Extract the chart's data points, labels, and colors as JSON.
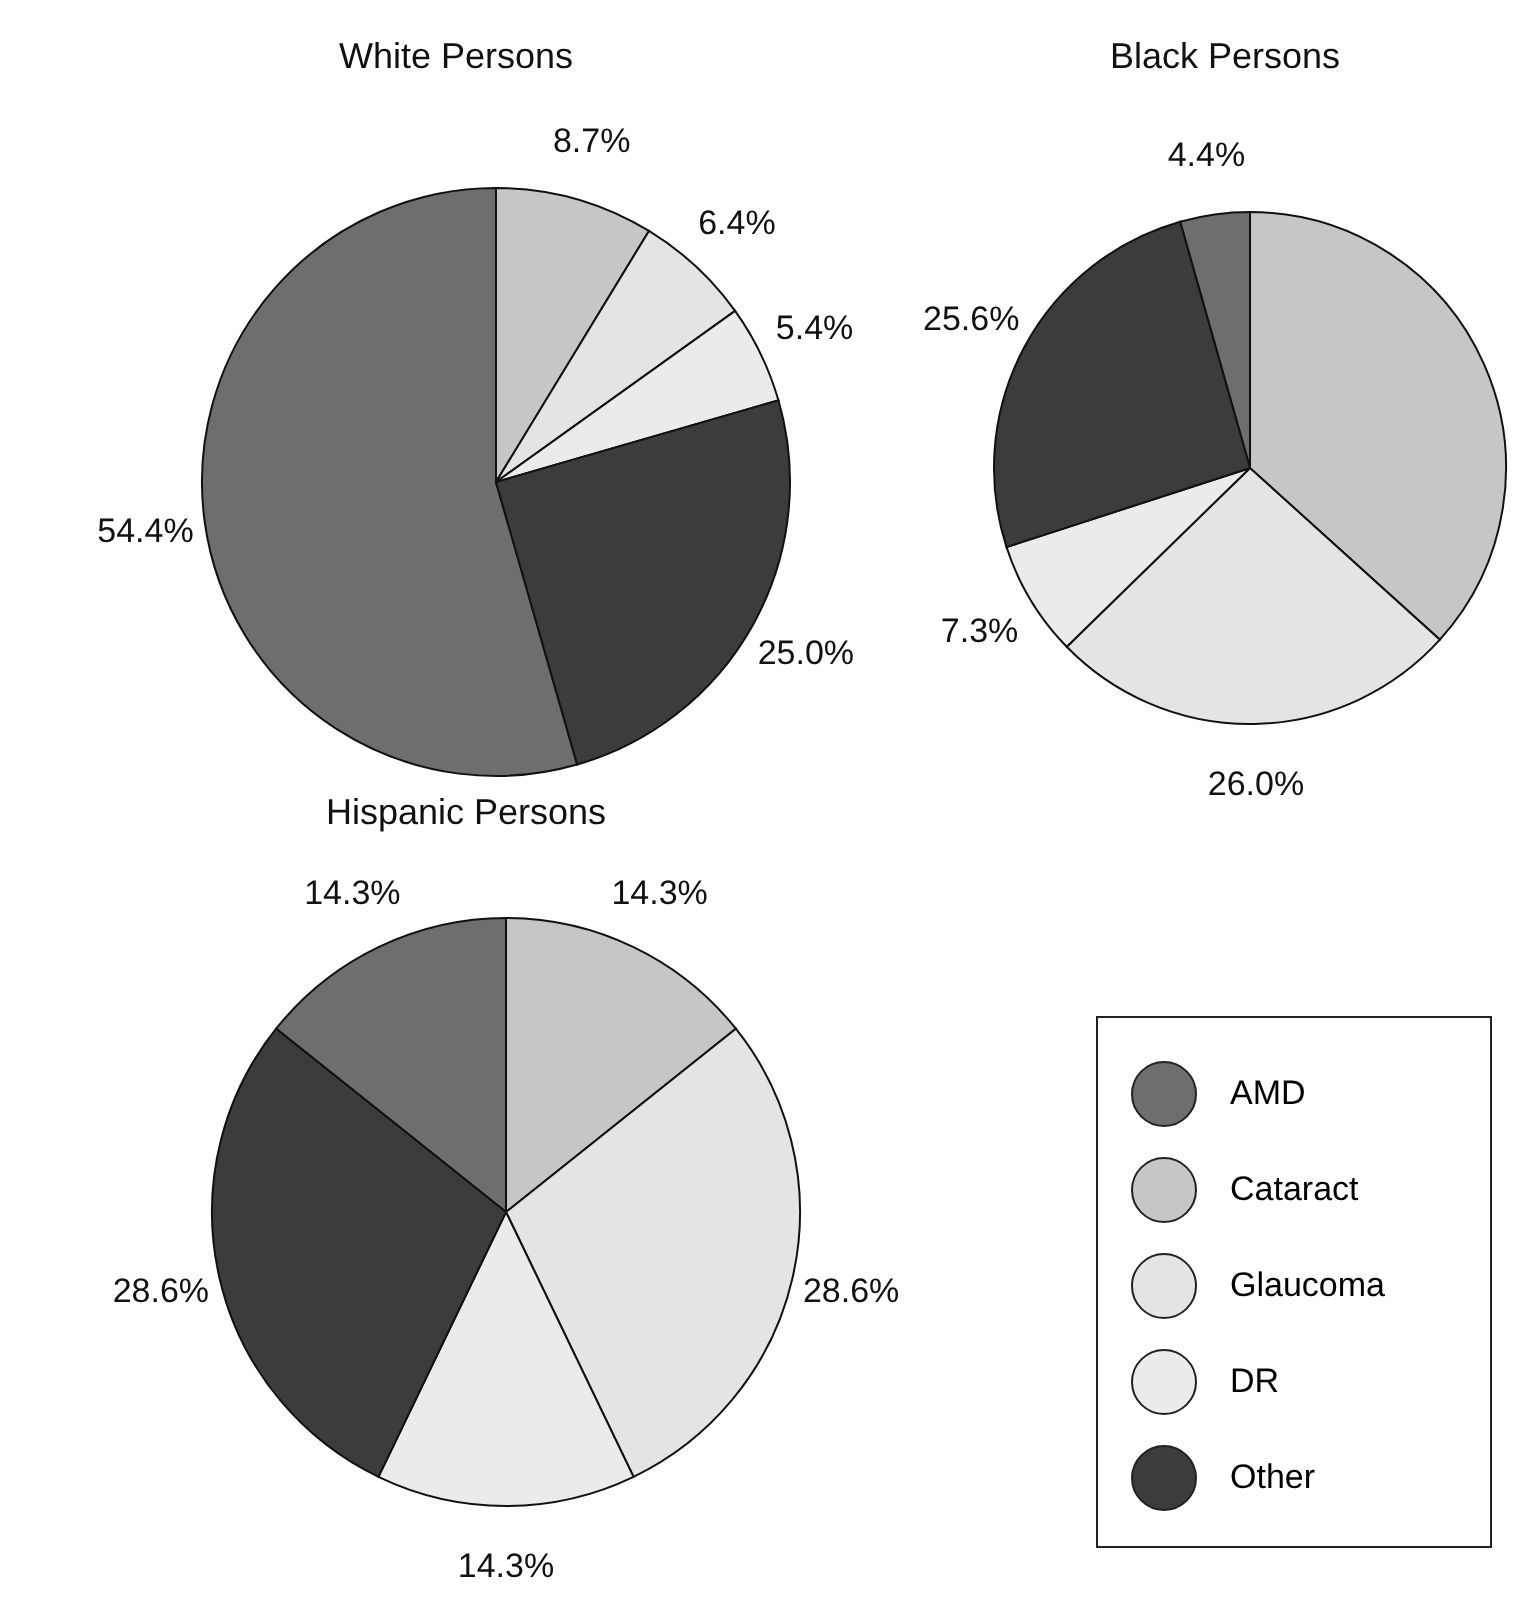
{
  "chart_data": [
    {
      "type": "pie",
      "title": "White Persons",
      "categories": [
        "AMD",
        "Cataract",
        "Glaucoma",
        "DR",
        "Other"
      ],
      "values": [
        54.4,
        8.7,
        6.4,
        5.4,
        25.0
      ],
      "colors": [
        "#6e6e6e",
        "#c6c6c6",
        "#e4e4e4",
        "#ebebeb",
        "#3c3c3c"
      ],
      "value_labels": [
        "54.4%",
        "8.7%",
        "6.4%",
        "5.4%",
        "25.0%"
      ],
      "legend": "bottom right"
    },
    {
      "type": "pie",
      "title": "Black Persons",
      "categories": [
        null,
        null,
        null,
        null,
        null
      ],
      "values": [
        4.4,
        36.7,
        26.0,
        7.3,
        25.6
      ],
      "colors": [
        "#6e6e6e",
        "#c6c6c6",
        "#e4e4e4",
        "#ebebeb",
        "#3c3c3c"
      ],
      "value_labels": [
        "4.4%",
        null,
        "26.0%",
        "7.3%",
        "25.6%"
      ]
    },
    {
      "type": "pie",
      "title": "Hispanic Persons",
      "categories": [
        null,
        null,
        null,
        null,
        null
      ],
      "values": [
        14.3,
        14.3,
        28.6,
        14.3,
        28.6
      ],
      "colors": [
        "#6e6e6e",
        "#c6c6c6",
        "#e4e4e4",
        "#ebebeb",
        "#3c3c3c"
      ],
      "value_labels": [
        "14.3%",
        "14.3%",
        "28.6%",
        "14.3%",
        "28.6%"
      ]
    }
  ]
}
